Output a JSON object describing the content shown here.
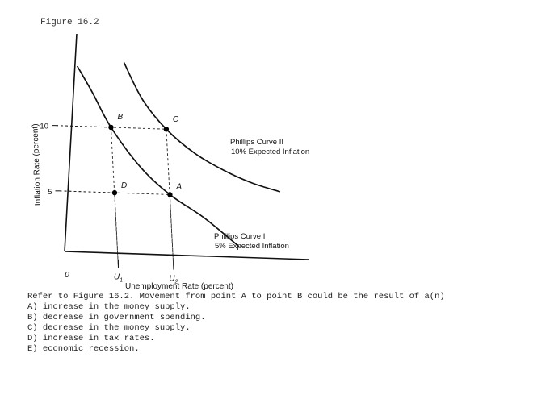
{
  "figure_label": "Figure 16.2",
  "chart_data": {
    "type": "line",
    "title": "",
    "xlabel": "Unemployment Rate (percent)",
    "ylabel": "Inflation Rate (percent)",
    "x_ticks": [
      {
        "x": 0,
        "label": "0"
      },
      {
        "x": 1,
        "label": "U1"
      },
      {
        "x": 2,
        "label": "U2"
      }
    ],
    "y_ticks": [
      {
        "y": 5,
        "label": "5"
      },
      {
        "y": 10,
        "label": "10"
      }
    ],
    "xlim": [
      0,
      4.5
    ],
    "ylim": [
      0,
      17
    ],
    "grid": false,
    "series": [
      {
        "name": "Phillips Curve I",
        "label_lines": [
          "Phillips Curve I",
          "5% Expected Inflation"
        ],
        "x": [
          0.45,
          0.7,
          1.0,
          1.5,
          2.0,
          2.6,
          3.2
        ],
        "y": [
          14.6,
          12.6,
          10.0,
          7.0,
          5.0,
          3.3,
          1.2
        ]
      },
      {
        "name": "Phillips Curve II",
        "label_lines": [
          "Phillips Curve II",
          "10% Expected Inflation"
        ],
        "x": [
          1.3,
          1.6,
          2.0,
          2.5,
          3.0,
          3.5,
          4.0
        ],
        "y": [
          15.0,
          12.2,
          10.0,
          8.2,
          7.0,
          6.1,
          5.5
        ]
      }
    ],
    "points": [
      {
        "label": "A",
        "x": 2.0,
        "y": 5.0
      },
      {
        "label": "B",
        "x": 1.0,
        "y": 10.0
      },
      {
        "label": "C",
        "x": 2.0,
        "y": 10.0
      },
      {
        "label": "D",
        "x": 1.0,
        "y": 5.0
      }
    ]
  },
  "question": {
    "prompt": "Refer to Figure 16.2. Movement from point A to point B could be the result of a(n)",
    "options": [
      "A) increase in the money supply.",
      "B) decrease in government spending.",
      "C) decrease in the money supply.",
      "D) increase in tax rates.",
      "E) economic recession."
    ]
  }
}
